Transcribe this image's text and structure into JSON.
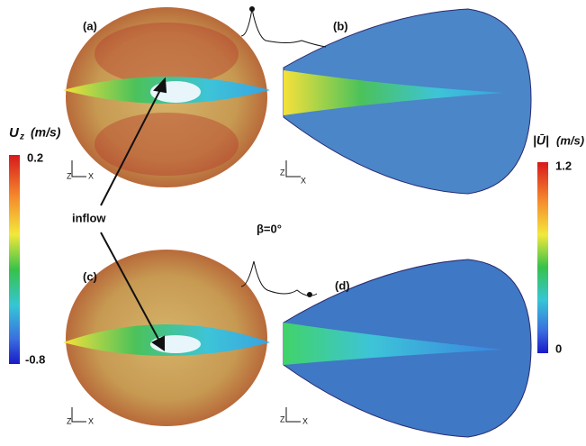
{
  "panels": [
    {
      "label": "(a)"
    },
    {
      "label": "(b)"
    },
    {
      "label": "(c)"
    },
    {
      "label": "(d)"
    }
  ],
  "annotations": {
    "inflow": "inflow",
    "angle": "β=0°"
  },
  "colorbars": {
    "left": {
      "symbol": "U",
      "subscript": "z",
      "unit": "(m/s)",
      "max": "0.2",
      "min": "-0.8"
    },
    "right": {
      "symbol": "|Ū|",
      "unit": "(m/s)",
      "max": "1.2",
      "min": "0"
    }
  },
  "triads": [
    {
      "z": "Z",
      "x": "X"
    },
    {
      "z": "Z",
      "x": "X"
    },
    {
      "z": "Z",
      "x": "X"
    },
    {
      "z": "Z",
      "x": "X"
    }
  ]
}
